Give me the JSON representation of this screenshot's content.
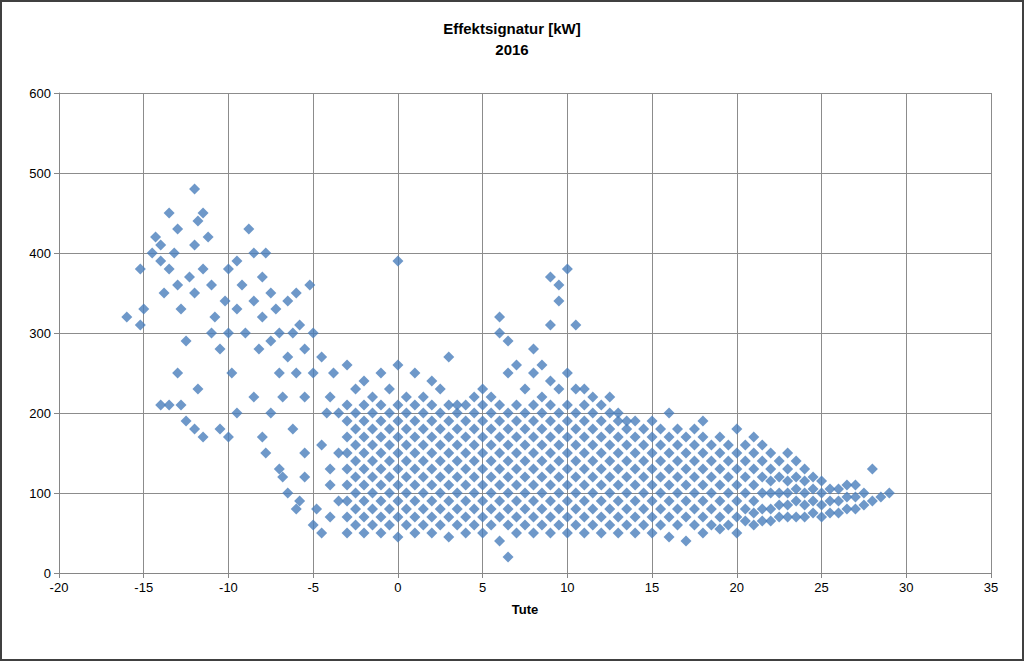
{
  "chart_data": {
    "type": "scatter",
    "title": "Effektsignatur [kW]",
    "subtitle": "2016",
    "x_label": "Tute",
    "marker": "diamond",
    "color": "#4a7ebb",
    "grid": true,
    "xlim": [
      -20,
      35
    ],
    "ylim": [
      0,
      600
    ],
    "xticks": [
      -20,
      -15,
      -10,
      -5,
      0,
      5,
      10,
      15,
      20,
      25,
      30,
      35
    ],
    "yticks": [
      0,
      100,
      200,
      300,
      400,
      500,
      600
    ],
    "x": [
      -16,
      -15.2,
      -15.2,
      -15,
      -14.5,
      -14.3,
      -14,
      -14,
      -13.8,
      -13.5,
      -13.5,
      -13.2,
      -13,
      -13,
      -12.8,
      -12.5,
      -12.3,
      -12,
      -12,
      -12,
      -11.8,
      -11.5,
      -11.5,
      -11.2,
      -11,
      -11,
      -10.8,
      -10.5,
      -10.2,
      -10,
      -10,
      -9.8,
      -9.5,
      -9.5,
      -9.2,
      -9,
      -8.8,
      -8.5,
      -8.5,
      -8.2,
      -8,
      -8,
      -7.8,
      -7.5,
      -7.5,
      -7.2,
      -7,
      -7,
      -6.8,
      -6.5,
      -6.5,
      -6.2,
      -6,
      -6,
      -5.8,
      -5.5,
      -5.5,
      -5.2,
      -5,
      -5,
      -14,
      -13.5,
      -13,
      -12.8,
      -12.5,
      -12,
      -11.5,
      -11.8,
      -10.5,
      -10,
      -9.5,
      -8.5,
      -8,
      -7.8,
      -7.5,
      -7,
      -6.8,
      -6.5,
      -6,
      -5.8,
      -5.5,
      -5,
      -4.8,
      -5.5,
      -6.2,
      -4.5,
      -4,
      -4.5,
      -4,
      -3.8,
      -4.2,
      -4,
      -3.5,
      -3.5,
      -4.5,
      -3.5,
      -4,
      -3,
      -3,
      -3,
      -3,
      -3,
      -3,
      -3,
      -3,
      -3,
      -3,
      -2.5,
      -2.5,
      -2.5,
      -2.5,
      -2.5,
      -2.5,
      -2.5,
      -2.5,
      -2.5,
      -2,
      -2,
      -2,
      -2,
      -2,
      -2,
      -2,
      -2,
      -2,
      -2,
      -1.5,
      -1.5,
      -1.5,
      -1.5,
      -1.5,
      -1.5,
      -1.5,
      -1.5,
      -1.5,
      -1,
      -1,
      -1,
      -1,
      -1,
      -1,
      -1,
      -1,
      -1,
      -1,
      -0.5,
      -0.5,
      -0.5,
      -0.5,
      -0.5,
      -0.5,
      -0.5,
      -0.5,
      -0.5,
      0,
      0,
      0,
      0,
      0,
      0,
      0,
      0,
      0,
      0,
      0,
      0.5,
      0.5,
      0.5,
      0.5,
      0.5,
      0.5,
      0.5,
      0.5,
      0.5,
      1,
      1,
      1,
      1,
      1,
      1,
      1,
      1,
      1,
      1,
      1.5,
      1.5,
      1.5,
      1.5,
      1.5,
      1.5,
      1.5,
      1.5,
      1.5,
      2,
      2,
      2,
      2,
      2,
      2,
      2,
      2,
      2,
      2,
      2.5,
      2.5,
      2.5,
      2.5,
      2.5,
      2.5,
      2.5,
      2.5,
      2.5,
      3,
      3,
      3,
      3,
      3,
      3,
      3,
      3,
      3,
      3,
      3.5,
      3.5,
      3.5,
      3.5,
      3.5,
      3.5,
      3.5,
      3.5,
      3.5,
      4,
      4,
      4,
      4,
      4,
      4,
      4,
      4,
      4,
      4.5,
      4.5,
      4.5,
      4.5,
      4.5,
      4.5,
      4.5,
      4.5,
      4.5,
      5,
      5,
      5,
      5,
      5,
      5,
      5,
      5,
      5,
      5,
      5.5,
      5.5,
      5.5,
      5.5,
      5.5,
      5.5,
      5.5,
      5.5,
      5.5,
      6,
      6,
      6,
      6,
      6,
      6,
      6,
      6,
      6,
      6,
      6,
      6.5,
      6.5,
      6.5,
      6.5,
      6.5,
      6.5,
      6.5,
      6.5,
      6.5,
      6.5,
      6.5,
      7,
      7,
      7,
      7,
      7,
      7,
      7,
      7,
      7,
      7,
      7.5,
      7.5,
      7.5,
      7.5,
      7.5,
      7.5,
      7.5,
      7.5,
      7.5,
      8,
      8,
      8,
      8,
      8,
      8,
      8,
      8,
      8,
      8,
      8,
      8.5,
      8.5,
      8.5,
      8.5,
      8.5,
      8.5,
      8.5,
      8.5,
      8.5,
      8.5,
      9,
      9,
      9,
      9,
      9,
      9,
      9,
      9,
      9,
      9,
      9,
      9,
      9.5,
      9.5,
      9.5,
      9.5,
      9.5,
      9.5,
      9.5,
      9.5,
      9.5,
      9.5,
      9.5,
      10,
      10,
      10,
      10,
      10,
      10,
      10,
      10,
      10,
      10,
      10,
      10.5,
      10.5,
      10.5,
      10.5,
      10.5,
      10.5,
      10.5,
      10.5,
      10.5,
      10.5,
      11,
      11,
      11,
      11,
      11,
      11,
      11,
      11,
      11,
      11,
      11.5,
      11.5,
      11.5,
      11.5,
      11.5,
      11.5,
      11.5,
      11.5,
      11.5,
      12,
      12,
      12,
      12,
      12,
      12,
      12,
      12,
      12,
      12.5,
      12.5,
      12.5,
      12.5,
      12.5,
      12.5,
      12.5,
      12.5,
      12.5,
      13,
      13,
      13,
      13,
      13,
      13,
      13,
      13,
      13,
      13.5,
      13.5,
      13.5,
      13.5,
      13.5,
      13.5,
      13.5,
      13.5,
      14,
      14,
      14,
      14,
      14,
      14,
      14,
      14,
      14.5,
      14.5,
      14.5,
      14.5,
      14.5,
      14.5,
      14.5,
      15,
      15,
      15,
      15,
      15,
      15,
      15,
      15,
      15.5,
      15.5,
      15.5,
      15.5,
      15.5,
      15.5,
      15.5,
      16,
      16,
      16,
      16,
      16,
      16,
      16,
      16,
      16.5,
      16.5,
      16.5,
      16.5,
      16.5,
      16.5,
      16.5,
      17,
      17,
      17,
      17,
      17,
      17,
      17,
      17.5,
      17.5,
      17.5,
      17.5,
      17.5,
      17.5,
      17.5,
      18,
      18,
      18,
      18,
      18,
      18,
      18,
      18,
      18.5,
      18.5,
      18.5,
      18.5,
      18.5,
      18.5,
      19,
      19,
      19,
      19,
      19,
      19,
      19,
      19.5,
      19.5,
      19.5,
      19.5,
      19.5,
      19.5,
      20,
      20,
      20,
      20,
      20,
      20,
      20,
      20.5,
      20.5,
      20.5,
      20.5,
      20.5,
      20.5,
      21,
      21,
      21,
      21,
      21,
      21,
      21,
      21.5,
      21.5,
      21.5,
      21.5,
      21.5,
      21.5,
      22,
      22,
      22,
      22,
      22,
      22,
      22.5,
      22.5,
      22.5,
      22.5,
      22.5,
      23,
      23,
      23,
      23,
      23,
      23,
      23.5,
      23.5,
      23.5,
      23.5,
      23.5,
      24,
      24,
      24,
      24,
      24,
      24.5,
      24.5,
      24.5,
      24.5,
      25,
      25,
      25,
      25,
      25.5,
      25.5,
      25.5,
      26,
      26,
      26,
      26.5,
      26.5,
      26.5,
      27,
      27,
      27,
      27.5,
      27.5,
      28,
      28,
      28.5,
      29
    ],
    "values": [
      320,
      380,
      310,
      330,
      400,
      420,
      410,
      390,
      350,
      450,
      380,
      400,
      430,
      360,
      330,
      290,
      370,
      480,
      410,
      350,
      440,
      450,
      380,
      420,
      360,
      300,
      320,
      280,
      340,
      380,
      300,
      250,
      390,
      330,
      360,
      300,
      430,
      400,
      340,
      280,
      370,
      320,
      400,
      350,
      290,
      330,
      300,
      250,
      220,
      340,
      270,
      300,
      350,
      250,
      310,
      280,
      220,
      360,
      300,
      250,
      210,
      210,
      250,
      210,
      190,
      180,
      170,
      230,
      180,
      170,
      200,
      220,
      170,
      150,
      200,
      130,
      120,
      100,
      80,
      90,
      120,
      60,
      80,
      150,
      180,
      50,
      70,
      160,
      220,
      250,
      200,
      110,
      90,
      150,
      270,
      200,
      130,
      50,
      70,
      90,
      110,
      130,
      150,
      170,
      190,
      210,
      260,
      60,
      80,
      100,
      120,
      140,
      160,
      180,
      200,
      230,
      50,
      70,
      90,
      110,
      130,
      150,
      170,
      190,
      210,
      240,
      60,
      80,
      100,
      120,
      140,
      160,
      180,
      200,
      220,
      50,
      70,
      90,
      110,
      130,
      150,
      170,
      190,
      210,
      250,
      60,
      80,
      100,
      120,
      140,
      160,
      180,
      200,
      230,
      45,
      70,
      90,
      110,
      130,
      150,
      170,
      190,
      210,
      260,
      390,
      60,
      80,
      100,
      120,
      140,
      160,
      180,
      200,
      220,
      50,
      70,
      90,
      110,
      130,
      150,
      170,
      190,
      210,
      250,
      60,
      80,
      100,
      120,
      140,
      160,
      180,
      200,
      220,
      50,
      70,
      90,
      110,
      130,
      150,
      170,
      190,
      210,
      240,
      60,
      80,
      100,
      120,
      140,
      160,
      180,
      200,
      230,
      45,
      70,
      90,
      110,
      130,
      150,
      170,
      190,
      210,
      270,
      60,
      80,
      100,
      120,
      140,
      160,
      180,
      200,
      210,
      50,
      70,
      90,
      110,
      130,
      150,
      170,
      190,
      210,
      60,
      80,
      100,
      120,
      140,
      160,
      180,
      200,
      220,
      50,
      70,
      90,
      110,
      130,
      150,
      170,
      190,
      210,
      230,
      60,
      80,
      100,
      120,
      140,
      160,
      180,
      200,
      220,
      40,
      70,
      90,
      110,
      130,
      150,
      170,
      190,
      210,
      300,
      320,
      20,
      60,
      80,
      100,
      120,
      140,
      160,
      180,
      200,
      250,
      290,
      50,
      70,
      90,
      110,
      130,
      150,
      170,
      190,
      210,
      260,
      60,
      80,
      100,
      120,
      140,
      160,
      180,
      200,
      230,
      50,
      70,
      90,
      110,
      130,
      150,
      170,
      190,
      210,
      250,
      280,
      60,
      80,
      100,
      120,
      140,
      160,
      180,
      200,
      220,
      260,
      50,
      70,
      90,
      110,
      130,
      150,
      170,
      190,
      210,
      240,
      310,
      370,
      60,
      80,
      100,
      120,
      140,
      160,
      180,
      200,
      230,
      340,
      360,
      50,
      70,
      90,
      110,
      130,
      150,
      170,
      190,
      210,
      250,
      380,
      60,
      80,
      100,
      120,
      140,
      160,
      180,
      200,
      230,
      310,
      50,
      70,
      90,
      110,
      130,
      150,
      170,
      190,
      210,
      230,
      60,
      80,
      100,
      120,
      140,
      160,
      180,
      200,
      220,
      50,
      70,
      90,
      110,
      130,
      150,
      170,
      190,
      210,
      60,
      80,
      100,
      120,
      140,
      160,
      180,
      200,
      220,
      50,
      70,
      90,
      110,
      130,
      150,
      170,
      190,
      200,
      60,
      80,
      100,
      120,
      140,
      160,
      180,
      190,
      50,
      70,
      90,
      110,
      130,
      150,
      170,
      190,
      60,
      80,
      100,
      120,
      140,
      160,
      180,
      50,
      70,
      90,
      110,
      130,
      150,
      170,
      190,
      60,
      80,
      100,
      120,
      140,
      160,
      180,
      45,
      70,
      90,
      110,
      130,
      150,
      170,
      200,
      60,
      80,
      100,
      120,
      140,
      160,
      180,
      40,
      70,
      90,
      110,
      130,
      150,
      170,
      60,
      80,
      100,
      120,
      140,
      160,
      180,
      50,
      70,
      90,
      110,
      130,
      150,
      170,
      190,
      60,
      80,
      100,
      120,
      140,
      160,
      55,
      70,
      90,
      110,
      130,
      150,
      170,
      60,
      80,
      100,
      120,
      140,
      160,
      50,
      70,
      90,
      110,
      130,
      150,
      180,
      65,
      80,
      100,
      120,
      140,
      160,
      60,
      75,
      90,
      110,
      130,
      150,
      170,
      65,
      80,
      100,
      120,
      140,
      160,
      65,
      80,
      100,
      115,
      130,
      150,
      70,
      85,
      100,
      120,
      140,
      70,
      85,
      100,
      115,
      130,
      150,
      70,
      90,
      105,
      120,
      140,
      70,
      85,
      100,
      115,
      130,
      75,
      90,
      105,
      120,
      70,
      85,
      100,
      115,
      75,
      90,
      105,
      75,
      90,
      105,
      80,
      95,
      110,
      80,
      95,
      110,
      85,
      100,
      90,
      130,
      95,
      100
    ]
  }
}
